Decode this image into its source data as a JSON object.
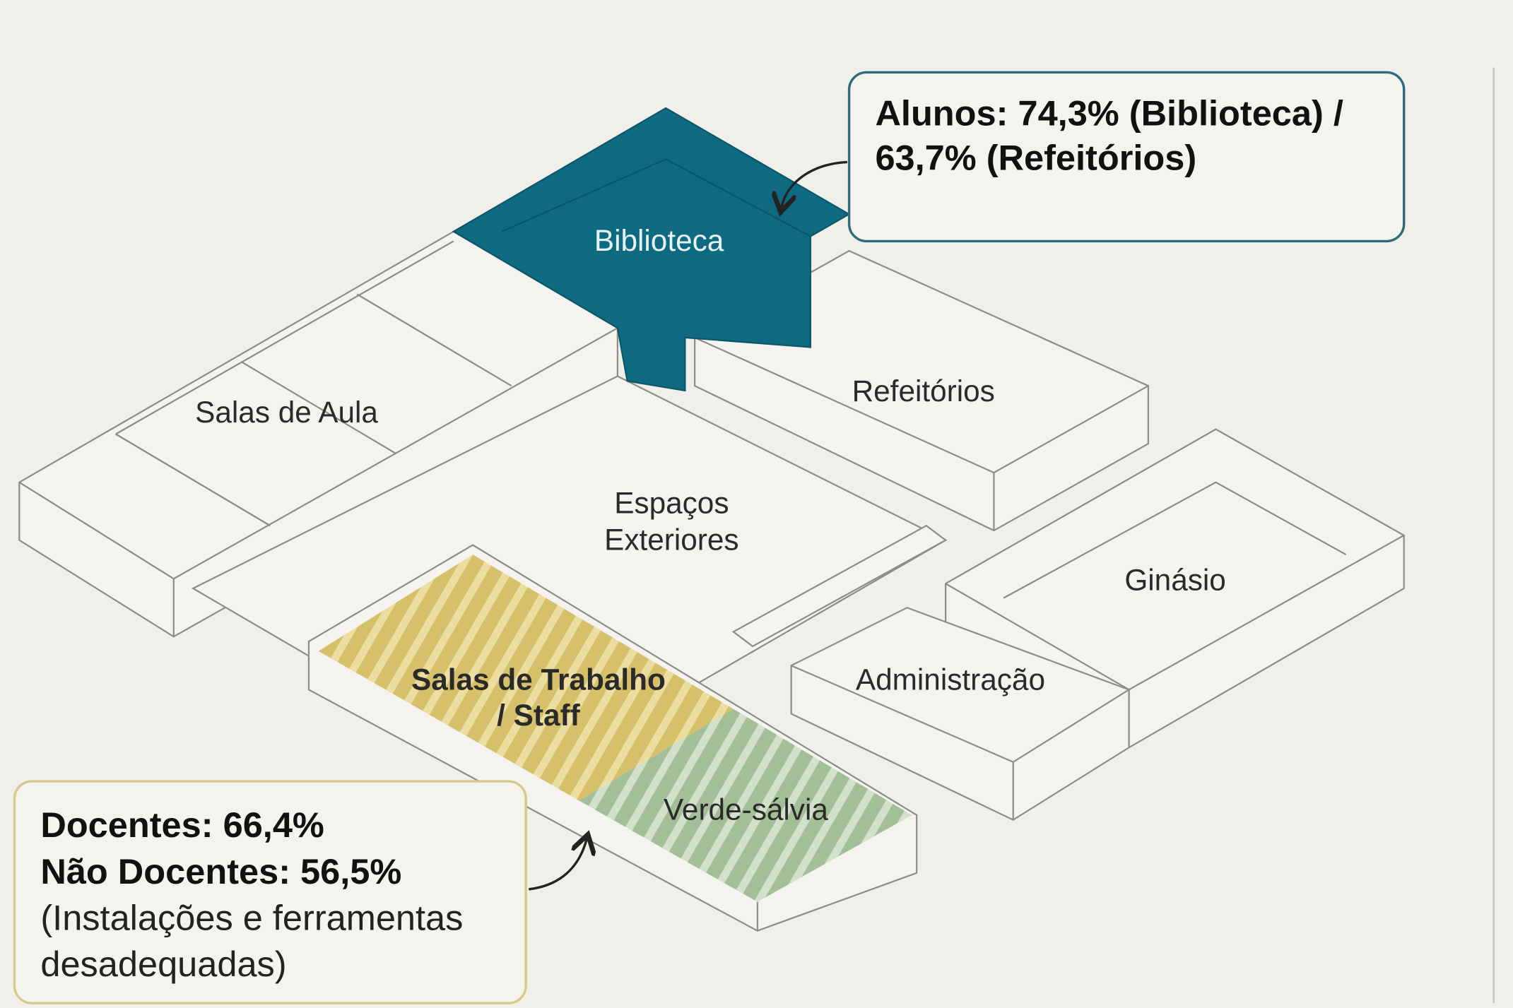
{
  "rooms": {
    "biblioteca": "Biblioteca",
    "salas_aula": "Salas de Aula",
    "refeitorios": "Refeitórios",
    "espacos": [
      "Espaços",
      "Exteriores"
    ],
    "ginasio": "Ginásio",
    "administracao": "Administração",
    "staff": [
      "Salas de Trabalho",
      "/ Staff"
    ],
    "verde": "Verde-sálvia"
  },
  "callouts": {
    "alunos": [
      "Alunos: 74,3% (Biblioteca) /",
      "63,7% (Refeitórios)"
    ],
    "docentes": [
      "Docentes: 66,4%",
      "Não Docentes: 56,5%",
      "(Instalações e ferramentas",
      "desadequadas)"
    ]
  }
}
